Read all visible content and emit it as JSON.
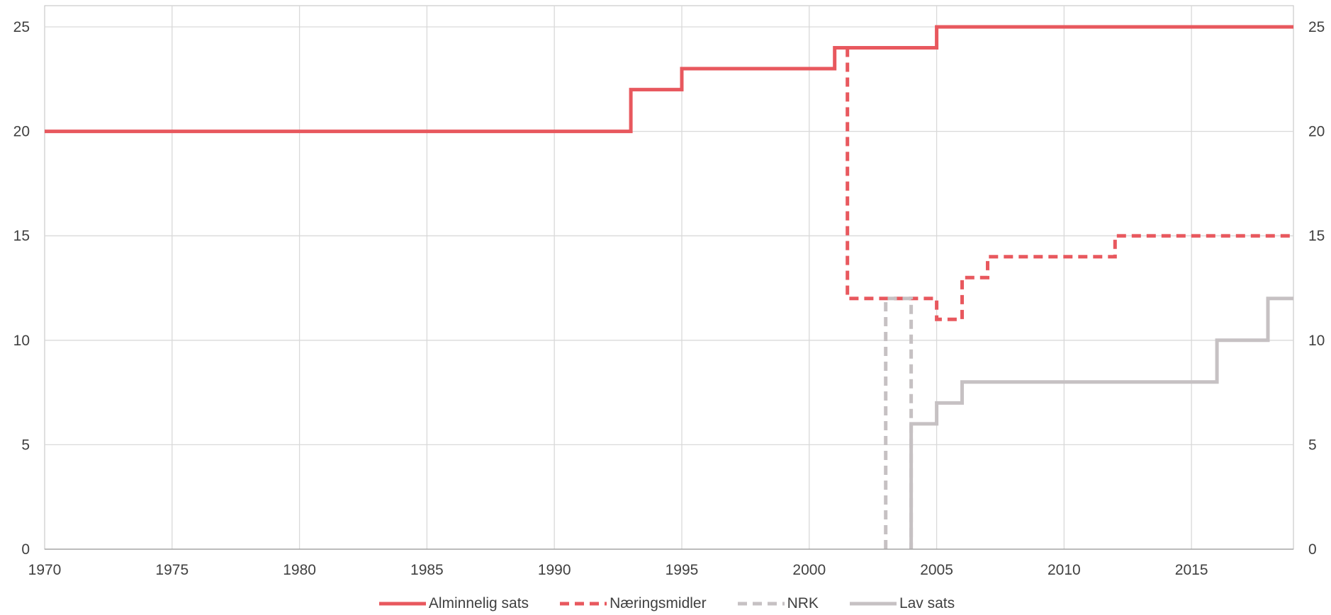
{
  "chart_data": {
    "type": "line",
    "title": "",
    "xlabel": "",
    "ylabel": "",
    "xlim": [
      1970,
      2019
    ],
    "ylim": [
      0,
      26
    ],
    "x_ticks": [
      1970,
      1975,
      1980,
      1985,
      1990,
      1995,
      2000,
      2005,
      2010,
      2015
    ],
    "y_ticks": [
      0,
      5,
      10,
      15,
      20,
      25
    ],
    "y_ticks_right": [
      0,
      5,
      10,
      15,
      20,
      25
    ],
    "grid": true,
    "legend_position": "bottom",
    "step": true,
    "series": [
      {
        "name": "Alminnelig sats",
        "color": "#E8585E",
        "dash": "solid",
        "points": [
          [
            1970,
            20
          ],
          [
            1993,
            20
          ],
          [
            1993,
            22
          ],
          [
            1995,
            22
          ],
          [
            1995,
            23
          ],
          [
            2001,
            23
          ],
          [
            2001,
            24
          ],
          [
            2005,
            24
          ],
          [
            2005,
            25
          ],
          [
            2019,
            25
          ]
        ]
      },
      {
        "name": "Næringsmidler",
        "color": "#E8585E",
        "dash": "dashed",
        "points": [
          [
            2001.5,
            24
          ],
          [
            2001.5,
            12
          ],
          [
            2005,
            12
          ],
          [
            2005,
            11
          ],
          [
            2006,
            11
          ],
          [
            2006,
            13
          ],
          [
            2007,
            13
          ],
          [
            2007,
            14
          ],
          [
            2012,
            14
          ],
          [
            2012,
            15
          ],
          [
            2019,
            15
          ]
        ]
      },
      {
        "name": "NRK",
        "color": "#C6C1C3",
        "dash": "dashed",
        "points": [
          [
            2003,
            0
          ],
          [
            2003,
            12
          ],
          [
            2004,
            12
          ],
          [
            2004,
            0
          ]
        ]
      },
      {
        "name": "Lav sats",
        "color": "#C6C1C3",
        "dash": "solid",
        "points": [
          [
            2004,
            0
          ],
          [
            2004,
            6
          ],
          [
            2005,
            6
          ],
          [
            2005,
            7
          ],
          [
            2006,
            7
          ],
          [
            2006,
            8
          ],
          [
            2016,
            8
          ],
          [
            2016,
            10
          ],
          [
            2018,
            10
          ],
          [
            2018,
            12
          ],
          [
            2019,
            12
          ]
        ]
      }
    ]
  }
}
